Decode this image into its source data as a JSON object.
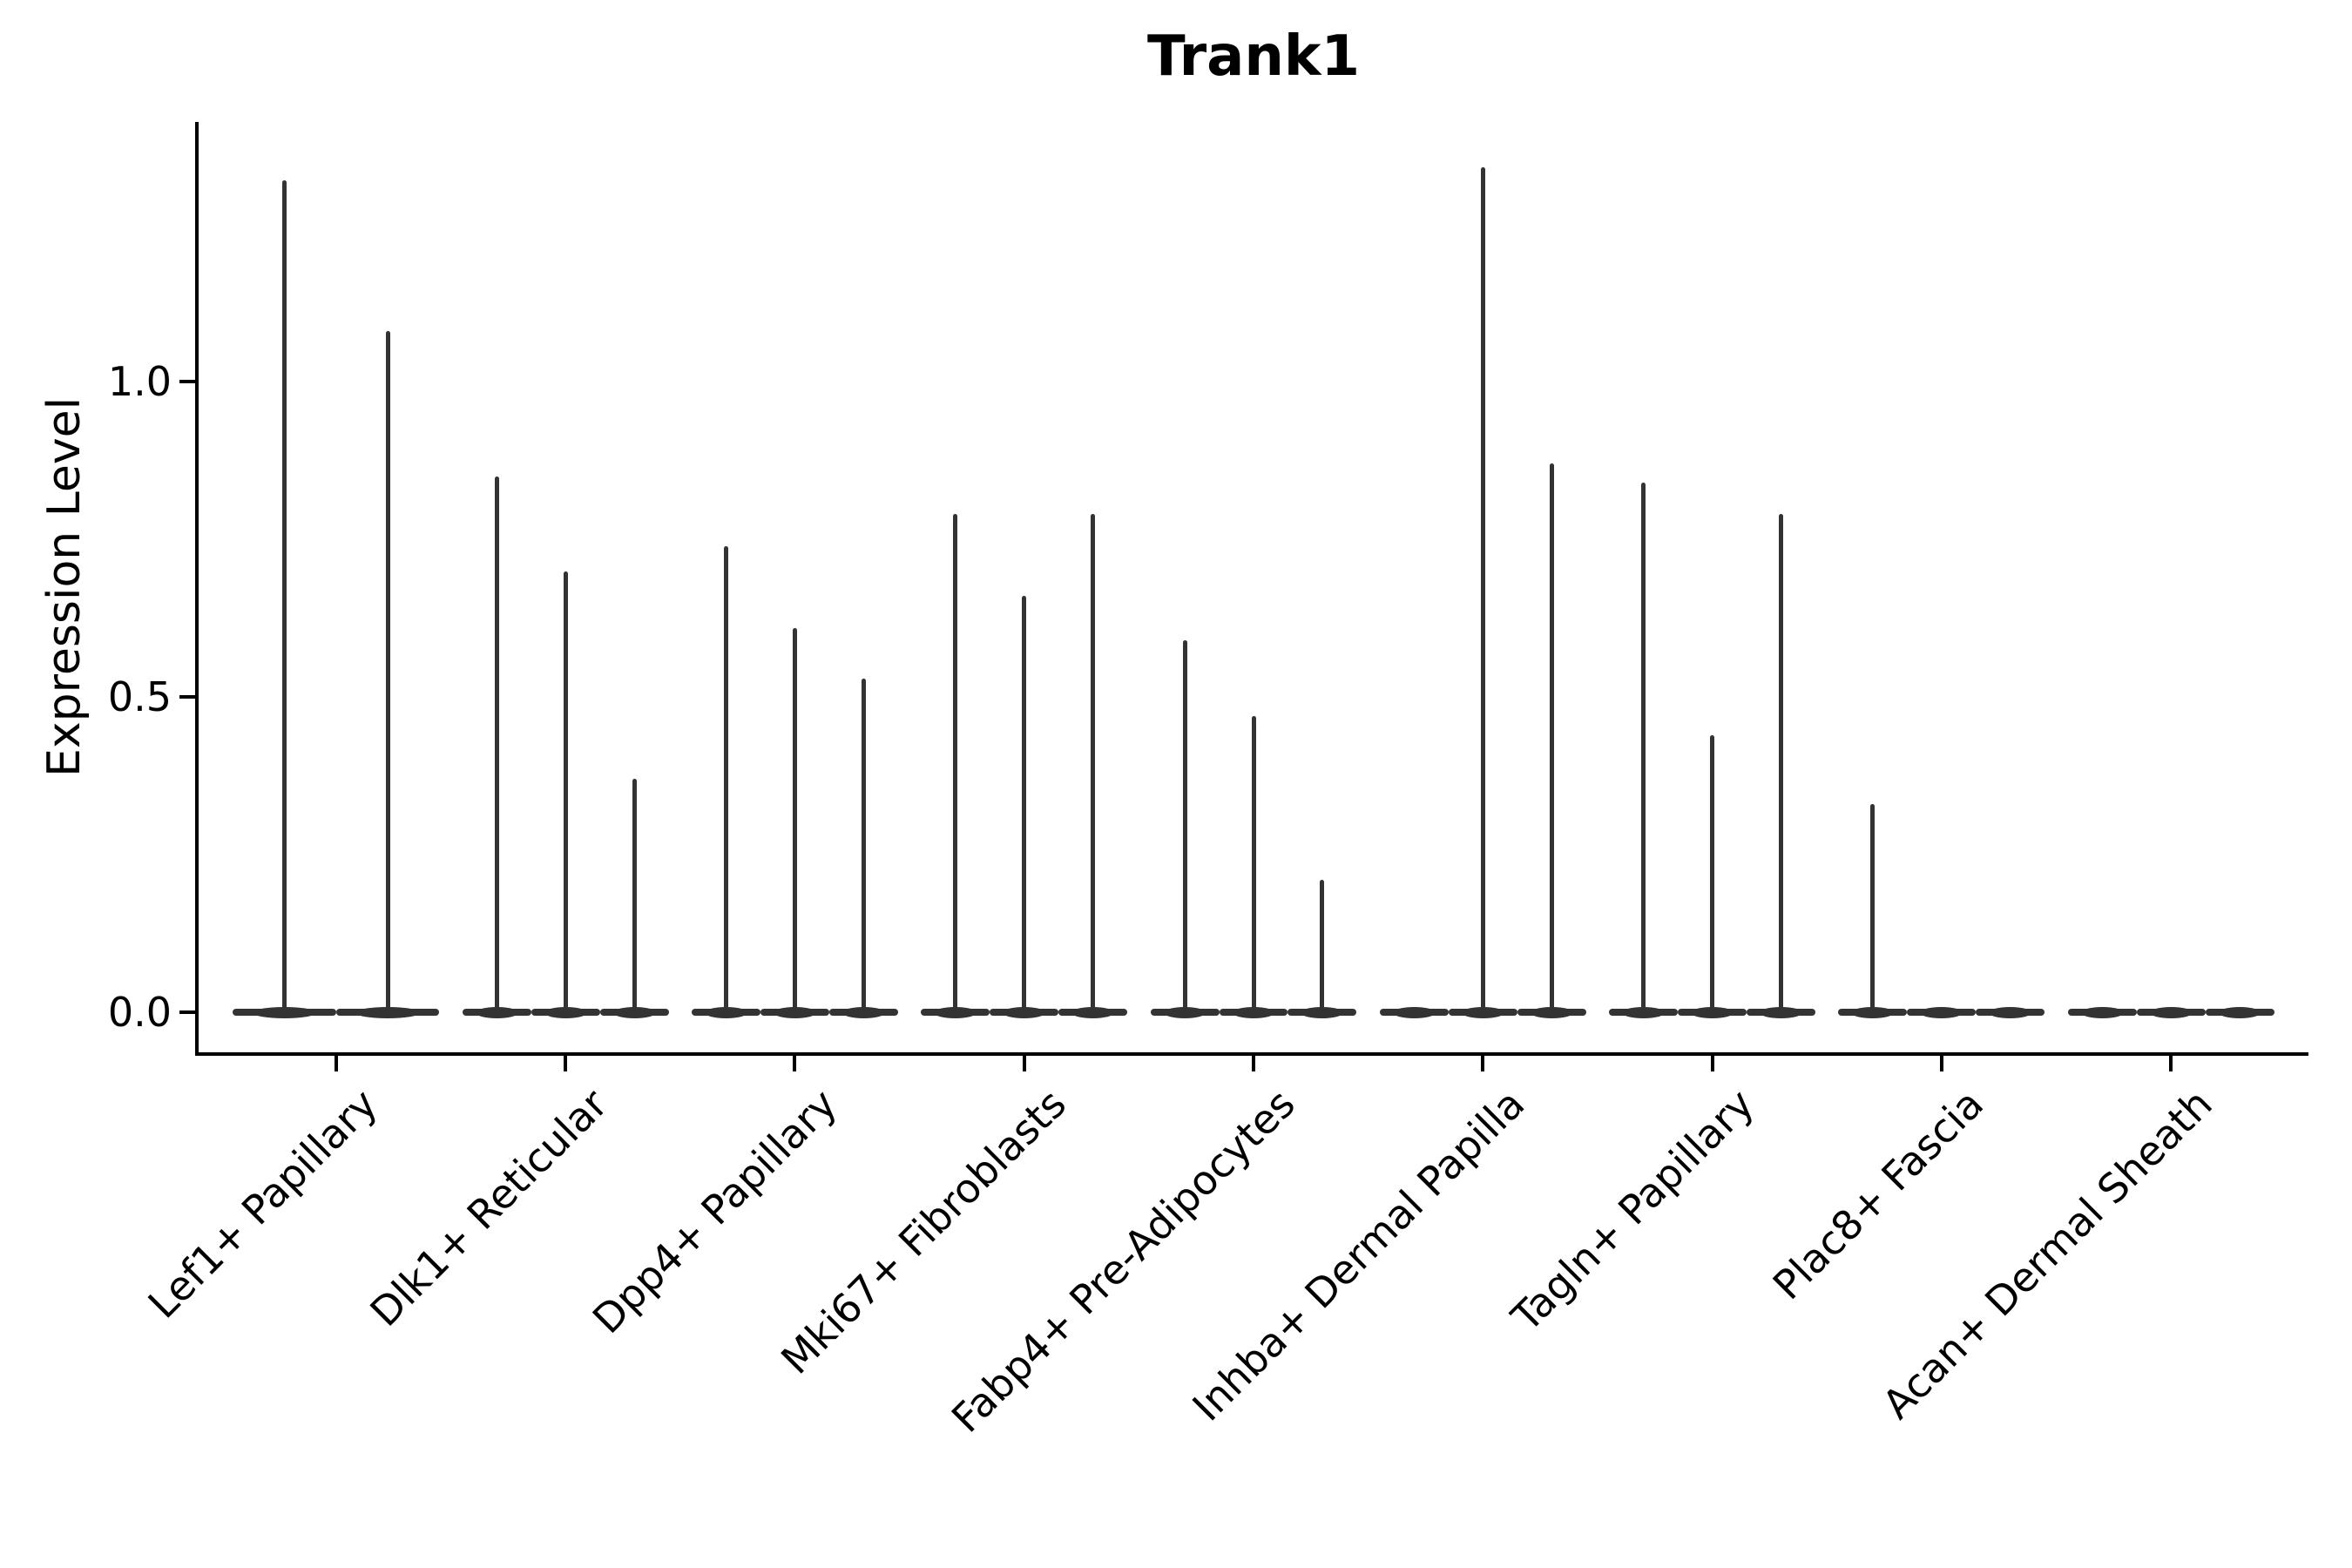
{
  "chart_data": {
    "type": "violin",
    "title": "Trank1",
    "ylabel": "Expression Level",
    "xlabel": "",
    "legend": "none",
    "grid": false,
    "ytick_labels": [
      "0.0",
      "0.5",
      "1.0"
    ],
    "ytick_values": [
      0.0,
      0.5,
      1.0
    ],
    "ylim": [
      -0.063,
      1.412
    ],
    "xlim": [
      -0.6,
      8.6
    ],
    "group_dodge_width": 0.9,
    "categories": [
      "Lef1+ Papillary",
      "Dlk1+ Reticular",
      "Dpp4+ Papillary",
      "Mki67+ Fibroblasts",
      "Fabp4+ Pre-Adipocytes",
      "Inhba+ Dermal Papilla",
      "Tagln+ Papillary",
      "Plac8+ Fascia",
      "Acan+ Dermal Sheath"
    ],
    "groups": [
      {
        "category": "Lef1+ Papillary",
        "violin_max_values": [
          1.32,
          1.08
        ]
      },
      {
        "category": "Dlk1+ Reticular",
        "violin_max_values": [
          0.85,
          0.7,
          0.37
        ]
      },
      {
        "category": "Dpp4+ Papillary",
        "violin_max_values": [
          0.74,
          0.61,
          0.53
        ]
      },
      {
        "category": "Mki67+ Fibroblasts",
        "violin_max_values": [
          0.79,
          0.66,
          0.79
        ]
      },
      {
        "category": "Fabp4+ Pre-Adipocytes",
        "violin_max_values": [
          0.59,
          0.47,
          0.21
        ]
      },
      {
        "category": "Inhba+ Dermal Papilla",
        "violin_max_values": [
          0.0,
          1.34,
          0.87
        ]
      },
      {
        "category": "Tagln+ Papillary",
        "violin_max_values": [
          0.84,
          0.44,
          0.79
        ]
      },
      {
        "category": "Plac8+ Fascia",
        "violin_max_values": [
          0.33,
          0.0,
          0.0
        ]
      },
      {
        "category": "Acan+ Dermal Sheath",
        "violin_max_values": [
          0.0,
          0.0,
          0.0
        ]
      }
    ],
    "colors": {
      "violin": "#333333",
      "axis": "#000000",
      "background": "#ffffff"
    }
  }
}
